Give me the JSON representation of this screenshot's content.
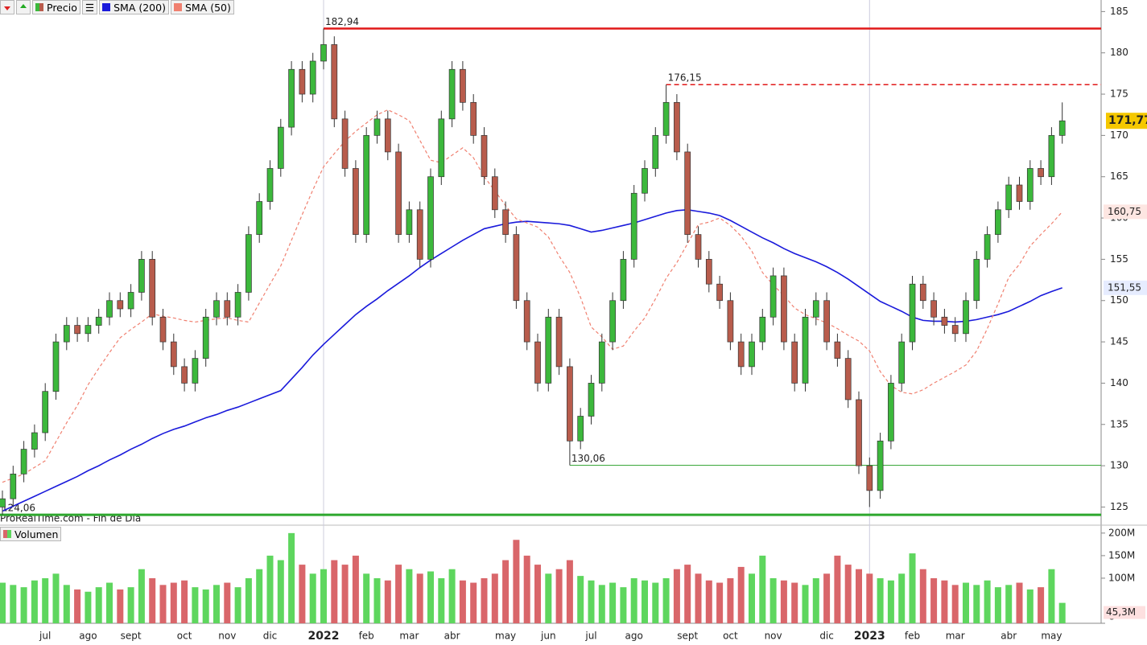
{
  "chart_data": {
    "type": "candlestick",
    "price_name": "Precio",
    "source": "ProRealTime.com - Fin de Día",
    "volume_title": "Volumen",
    "up_color": "#3cb83c",
    "down_color": "#b85c4c",
    "volume_up_color": "#5ed65e",
    "volume_down_color": "#d9666a",
    "categories": [
      null,
      null,
      null,
      null,
      "jul",
      null,
      null,
      null,
      "ago",
      null,
      null,
      null,
      "sept",
      null,
      null,
      null,
      null,
      "oct",
      null,
      null,
      null,
      "nov",
      null,
      null,
      null,
      "dic",
      null,
      null,
      null,
      null,
      "2022",
      null,
      null,
      null,
      "feb",
      null,
      null,
      null,
      "mar",
      null,
      null,
      null,
      "abr",
      null,
      null,
      null,
      null,
      "may",
      null,
      null,
      null,
      "jun",
      null,
      null,
      null,
      "jul",
      null,
      null,
      null,
      "ago",
      null,
      null,
      null,
      null,
      "sept",
      null,
      null,
      null,
      "oct",
      null,
      null,
      null,
      "nov",
      null,
      null,
      null,
      null,
      "dic",
      null,
      null,
      null,
      "2023",
      null,
      null,
      null,
      "feb",
      null,
      null,
      null,
      "mar",
      null,
      null,
      null,
      null,
      "abr",
      null,
      null,
      null,
      "may",
      null
    ],
    "open": [
      125,
      126,
      129,
      132,
      134,
      139,
      145,
      147,
      146,
      147,
      148,
      150,
      149,
      151,
      155,
      148,
      145,
      142,
      140,
      143,
      148,
      150,
      148,
      151,
      158,
      162,
      166,
      171,
      178,
      175,
      179,
      181,
      172,
      166,
      158,
      170,
      172,
      168,
      158,
      161,
      155,
      165,
      172,
      178,
      174,
      170,
      165,
      161,
      158,
      150,
      145,
      140,
      148,
      142,
      133,
      136,
      140,
      145,
      150,
      155,
      163,
      166,
      170,
      174,
      168,
      158,
      155,
      152,
      150,
      145,
      142,
      145,
      148,
      153,
      145,
      140,
      148,
      150,
      145,
      143,
      138,
      130,
      127,
      133,
      140,
      145,
      152,
      150,
      148,
      147,
      146,
      150,
      155,
      158,
      161,
      164,
      162,
      166,
      165,
      170
    ],
    "high": [
      127,
      130,
      133,
      135,
      140,
      146,
      148,
      148,
      148,
      149,
      151,
      151,
      152,
      156,
      156,
      149,
      146,
      143,
      144,
      149,
      151,
      151,
      152,
      159,
      163,
      167,
      172,
      179,
      179,
      180,
      182.94,
      182,
      173,
      167,
      171,
      173,
      173,
      169,
      162,
      162,
      166,
      173,
      179,
      179,
      175,
      171,
      166,
      162,
      159,
      151,
      146,
      149,
      149,
      143,
      137,
      141,
      146,
      151,
      156,
      164,
      167,
      171,
      176.15,
      175,
      169,
      159,
      156,
      153,
      151,
      146,
      146,
      149,
      154,
      154,
      146,
      149,
      151,
      151,
      146,
      144,
      139,
      131,
      134,
      141,
      146,
      153,
      153,
      151,
      149,
      148,
      151,
      156,
      159,
      162,
      165,
      165,
      167,
      167,
      171,
      174
    ],
    "low": [
      124.06,
      125,
      128,
      131,
      133,
      138,
      144,
      145,
      145,
      146,
      147,
      148,
      148,
      150,
      147,
      144,
      141,
      139,
      139,
      142,
      147,
      147,
      147,
      150,
      157,
      161,
      165,
      170,
      174,
      174,
      178,
      171,
      165,
      157,
      157,
      169,
      167,
      157,
      157,
      154,
      154,
      164,
      171,
      173,
      169,
      164,
      160,
      157,
      149,
      144,
      139,
      139,
      141,
      130.06,
      132,
      135,
      139,
      144,
      149,
      154,
      162,
      165,
      169,
      167,
      157,
      154,
      151,
      149,
      144,
      141,
      141,
      144,
      147,
      144,
      139,
      139,
      147,
      144,
      142,
      137,
      129,
      125,
      126,
      132,
      139,
      144,
      149,
      147,
      146,
      145,
      145,
      149,
      154,
      157,
      160,
      161,
      161,
      164,
      164,
      169
    ],
    "close": [
      126,
      129,
      132,
      134,
      139,
      145,
      147,
      146,
      147,
      148,
      150,
      149,
      151,
      155,
      148,
      145,
      142,
      140,
      143,
      148,
      150,
      148,
      151,
      158,
      162,
      166,
      171,
      178,
      175,
      179,
      181,
      172,
      166,
      158,
      170,
      172,
      168,
      158,
      161,
      155,
      165,
      172,
      178,
      174,
      170,
      165,
      161,
      158,
      150,
      145,
      140,
      148,
      142,
      133,
      136,
      140,
      145,
      150,
      155,
      163,
      166,
      170,
      174,
      168,
      158,
      155,
      152,
      150,
      145,
      142,
      145,
      148,
      153,
      145,
      140,
      148,
      150,
      145,
      143,
      138,
      130,
      127,
      133,
      140,
      145,
      152,
      150,
      148,
      147,
      146,
      150,
      155,
      158,
      161,
      164,
      162,
      166,
      165,
      170,
      171.77
    ],
    "close_labels": {
      "99": "171,77"
    },
    "volume": [
      90000000,
      85000000,
      80000000,
      95000000,
      100000000,
      110000000,
      85000000,
      75000000,
      70000000,
      80000000,
      90000000,
      75000000,
      80000000,
      120000000,
      100000000,
      85000000,
      90000000,
      95000000,
      80000000,
      75000000,
      85000000,
      90000000,
      80000000,
      100000000,
      120000000,
      150000000,
      140000000,
      200000000,
      130000000,
      110000000,
      120000000,
      140000000,
      130000000,
      150000000,
      110000000,
      100000000,
      95000000,
      130000000,
      120000000,
      110000000,
      115000000,
      100000000,
      120000000,
      95000000,
      90000000,
      100000000,
      110000000,
      140000000,
      185000000,
      150000000,
      130000000,
      110000000,
      120000000,
      140000000,
      105000000,
      95000000,
      85000000,
      90000000,
      80000000,
      100000000,
      95000000,
      90000000,
      100000000,
      120000000,
      130000000,
      110000000,
      95000000,
      90000000,
      100000000,
      125000000,
      110000000,
      150000000,
      100000000,
      95000000,
      90000000,
      85000000,
      100000000,
      110000000,
      150000000,
      130000000,
      120000000,
      110000000,
      100000000,
      95000000,
      110000000,
      155000000,
      120000000,
      100000000,
      95000000,
      85000000,
      90000000,
      85000000,
      95000000,
      80000000,
      85000000,
      90000000,
      75000000,
      80000000,
      120000000,
      45300000
    ],
    "volume_labels": {
      "99": "45,3M"
    },
    "series": [
      {
        "name": "SMA (200)",
        "color": "#1a1adb",
        "style": "solid",
        "values": [
          124.5,
          125.1,
          125.7,
          126.3,
          126.9,
          127.5,
          128.1,
          128.7,
          129.4,
          130.0,
          130.7,
          131.3,
          132.0,
          132.6,
          133.3,
          133.9,
          134.4,
          134.8,
          135.3,
          135.8,
          136.2,
          136.7,
          137.1,
          137.6,
          138.1,
          138.6,
          139.1,
          140.5,
          141.9,
          143.4,
          144.7,
          145.9,
          147.1,
          148.3,
          149.3,
          150.2,
          151.2,
          152.1,
          153.0,
          154.0,
          154.9,
          155.7,
          156.5,
          157.3,
          158.0,
          158.7,
          159.0,
          159.3,
          159.5,
          159.6,
          159.5,
          159.4,
          159.3,
          159.1,
          158.7,
          158.3,
          158.5,
          158.8,
          159.1,
          159.4,
          159.8,
          160.2,
          160.6,
          160.9,
          161.0,
          160.8,
          160.6,
          160.3,
          159.7,
          159.0,
          158.3,
          157.6,
          157.0,
          156.3,
          155.7,
          155.2,
          154.7,
          154.1,
          153.4,
          152.6,
          151.7,
          150.8,
          149.9,
          149.3,
          148.7,
          148.0,
          147.6,
          147.5,
          147.5,
          147.4,
          147.5,
          147.7,
          148.0,
          148.3,
          148.7,
          149.3,
          149.9,
          150.6,
          151.1,
          151.55
        ],
        "value_labels": {
          "99": "151,55"
        }
      },
      {
        "name": "SMA (50)",
        "color": "#f08070",
        "style": "dashed",
        "values": [
          128,
          128.5,
          129,
          129.8,
          130.6,
          132.9,
          135.2,
          137.3,
          139.8,
          141.8,
          143.7,
          145.5,
          146.5,
          147.4,
          148.4,
          148.1,
          147.9,
          147.6,
          147.4,
          147.6,
          147.8,
          147.9,
          147.6,
          147.4,
          149.7,
          152.0,
          154.2,
          157.3,
          160.4,
          163.4,
          166.2,
          167.8,
          169.3,
          170.5,
          171.5,
          172.5,
          173.1,
          172.5,
          171.8,
          169.4,
          167.0,
          166.7,
          167.6,
          168.5,
          167.3,
          165.0,
          163.3,
          161.5,
          159.9,
          159.4,
          158.9,
          157.7,
          155.4,
          153.4,
          150.4,
          146.8,
          145.6,
          144.1,
          144.5,
          146.3,
          147.9,
          150.2,
          152.7,
          154.6,
          156.9,
          159.2,
          159.5,
          160.0,
          159.1,
          157.8,
          156.0,
          153.4,
          151.9,
          150.6,
          149.1,
          148.3,
          147.8,
          147.3,
          146.6,
          145.8,
          145.1,
          143.9,
          141.4,
          139.7,
          138.9,
          138.7,
          139.2,
          140.0,
          140.7,
          141.4,
          142.2,
          143.9,
          146.6,
          149.6,
          152.8,
          154.4,
          156.6,
          158.0,
          159.3,
          160.75
        ],
        "value_labels": {
          "99": "160,75"
        }
      }
    ],
    "levels": [
      {
        "value": 182.94,
        "label": "182,94",
        "color": "#e01818",
        "style": "solid",
        "width": 2.5
      },
      {
        "value": 176.15,
        "label": "176,15",
        "color": "#e01818",
        "style": "dashed",
        "width": 1.5
      },
      {
        "value": 130.06,
        "label": "130,06",
        "color": "#3aa83a",
        "style": "solid",
        "width": 1
      },
      {
        "value": 124.06,
        "label": "124,06",
        "color": "#2ea82e",
        "style": "solid",
        "width": 3
      }
    ],
    "ylim": [
      122.9,
      186.4
    ],
    "yticks": [
      125,
      130,
      135,
      140,
      145,
      150,
      155,
      160,
      165,
      170,
      175,
      180,
      185
    ],
    "volume_ylim": [
      0,
      214000000
    ],
    "volume_ticks": [
      0,
      {
        "value": 100000000,
        "label": "100M"
      },
      {
        "value": 150000000,
        "label": "150M"
      },
      {
        "value": 200000000,
        "label": "200M"
      }
    ],
    "grid": false
  }
}
